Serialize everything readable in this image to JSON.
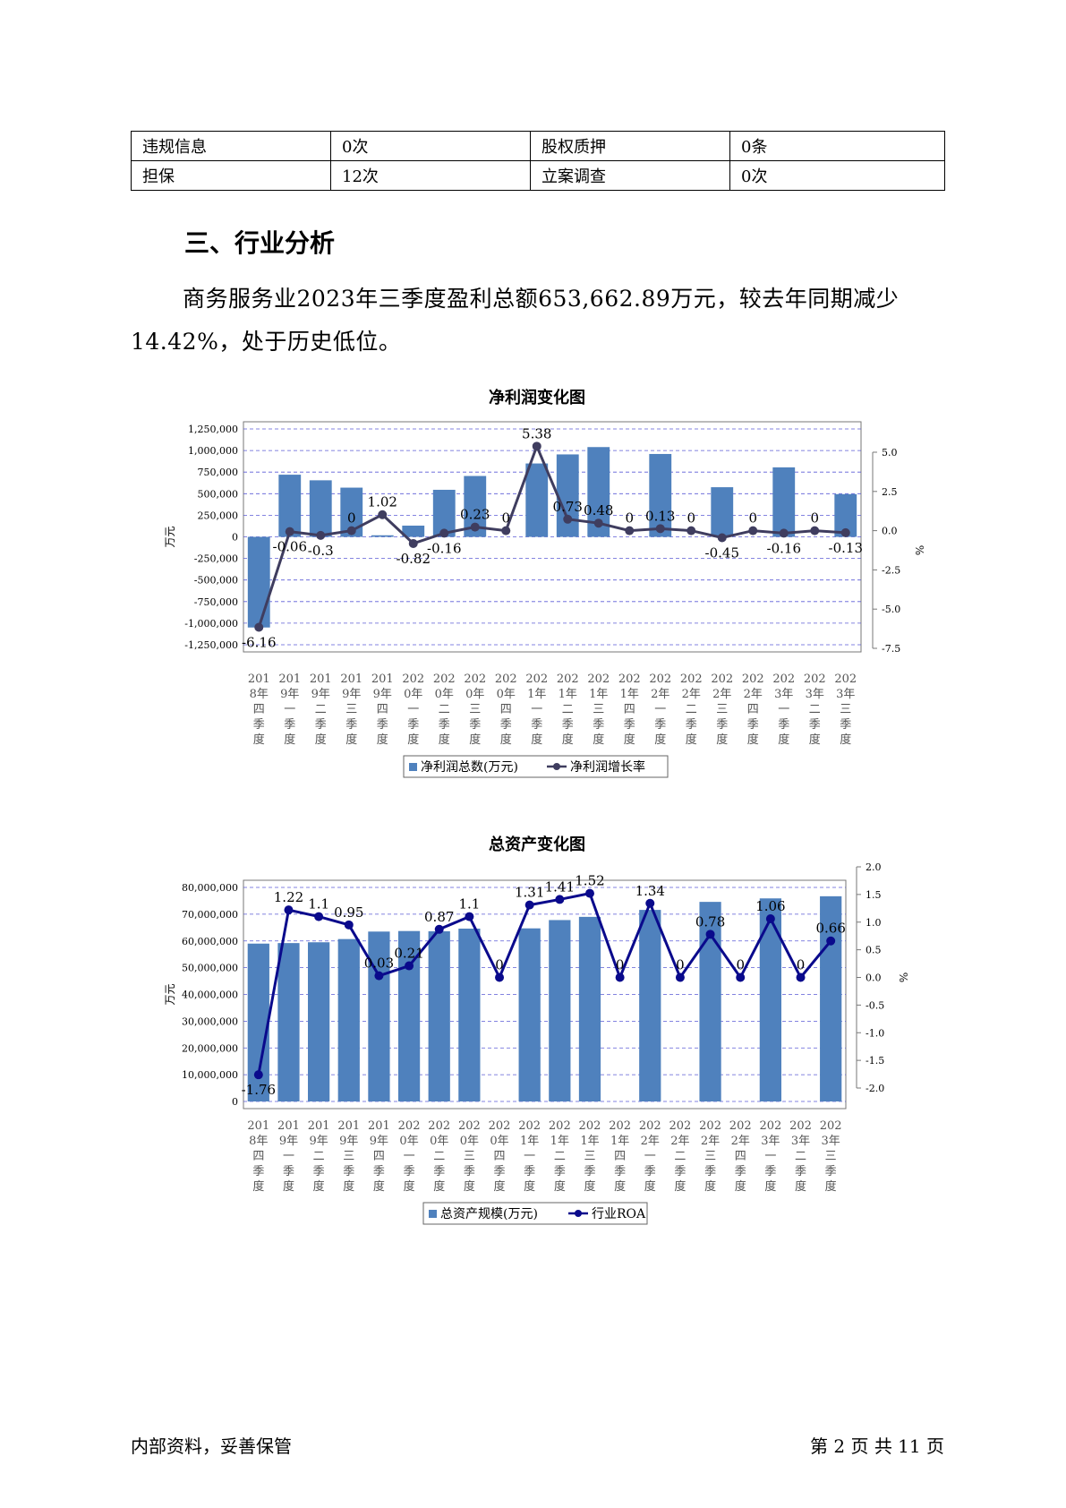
{
  "info_table": [
    [
      "违规信息",
      "0次",
      "股权质押",
      "0条"
    ],
    [
      "担保",
      "12次",
      "立案调查",
      "0次"
    ]
  ],
  "section_title": "三、行业分析",
  "paragraph": "商务服务业2023年三季度盈利总额653,662.89万元，较去年同期减少14.42%，处于历史低位。",
  "colors": {
    "bar": "#4f81bd",
    "line1": "#3f3d5f",
    "line2": "#0a0a8c",
    "grid": "#5b5bd6"
  },
  "chart_data": [
    {
      "type": "bar",
      "title": "净利润变化图",
      "categories": [
        "2018年四季度",
        "2019年一季度",
        "2019年二季度",
        "2019年三季度",
        "2019年四季度",
        "2020年一季度",
        "2020年二季度",
        "2020年三季度",
        "2020年四季度",
        "2021年一季度",
        "2021年二季度",
        "2021年三季度",
        "2021年四季度",
        "2022年一季度",
        "2022年二季度",
        "2022年三季度",
        "2022年四季度",
        "2023年一季度",
        "2023年二季度",
        "2023年三季度"
      ],
      "ylabel": "万元",
      "y2label": "%",
      "ylim": [
        -1250000,
        1250000
      ],
      "y2lim": [
        -7.5,
        5.0
      ],
      "yticks": [
        "1,250,000",
        "1,000,000",
        "750,000",
        "500,000",
        "250,000",
        "0",
        "-250,000",
        "-500,000",
        "-750,000",
        "-1,000,000",
        "-1,250,000"
      ],
      "y2ticks": [
        "5.0",
        "2.5",
        "0.0",
        "-2.5",
        "-5.0",
        "-7.5"
      ],
      "series": [
        {
          "name": "净利润总数(万元)",
          "kind": "bar",
          "values": [
            -1050000,
            720000,
            655000,
            570000,
            18000,
            130000,
            545000,
            705000,
            0,
            850000,
            955000,
            1040000,
            0,
            960000,
            0,
            575000,
            0,
            805000,
            0,
            495000
          ]
        },
        {
          "name": "净利润增长率",
          "kind": "line",
          "axis": "right",
          "values": [
            -6.16,
            -0.06,
            -0.3,
            0,
            1.02,
            -0.82,
            -0.16,
            0.23,
            0,
            5.38,
            0.73,
            0.48,
            0,
            0.13,
            0,
            -0.45,
            0,
            -0.16,
            0,
            -0.13
          ],
          "labels": [
            "-6.16",
            "-0.06",
            "-0.3",
            "0",
            "1.02",
            "-0.82",
            "-0.16",
            "0.23",
            "0",
            "5.38",
            "0.73",
            "0.48",
            "0",
            "0.13",
            "0",
            "-0.45",
            "0",
            "-0.16",
            "0",
            "-0.13"
          ]
        }
      ],
      "legend": "bottom"
    },
    {
      "type": "bar",
      "title": "总资产变化图",
      "categories": [
        "2018年四季度",
        "2019年一季度",
        "2019年二季度",
        "2019年三季度",
        "2019年四季度",
        "2020年一季度",
        "2020年二季度",
        "2020年三季度",
        "2020年四季度",
        "2021年一季度",
        "2021年二季度",
        "2021年三季度",
        "2021年四季度",
        "2022年一季度",
        "2022年二季度",
        "2022年三季度",
        "2022年四季度",
        "2023年一季度",
        "2023年二季度",
        "2023年三季度"
      ],
      "ylabel": "万元",
      "y2label": "%",
      "ylim": [
        0,
        80000000
      ],
      "y2lim": [
        -2.0,
        2.0
      ],
      "yticks": [
        "80,000,000",
        "70,000,000",
        "60,000,000",
        "50,000,000",
        "40,000,000",
        "30,000,000",
        "20,000,000",
        "10,000,000",
        "0"
      ],
      "y2ticks": [
        "2.0",
        "1.5",
        "1.0",
        "0.5",
        "0.0",
        "-0.5",
        "-1.0",
        "-1.5",
        "-2.0"
      ],
      "series": [
        {
          "name": "总资产规模(万元)",
          "kind": "bar",
          "values": [
            59000000,
            59200000,
            59500000,
            60700000,
            63500000,
            63700000,
            63600000,
            64600000,
            0,
            64700000,
            67800000,
            69000000,
            0,
            71600000,
            0,
            74600000,
            0,
            75900000,
            0,
            76700000
          ]
        },
        {
          "name": "行业ROA",
          "kind": "line",
          "axis": "right",
          "values": [
            -1.76,
            1.22,
            1.1,
            0.95,
            0.03,
            0.21,
            0.87,
            1.1,
            0,
            1.31,
            1.41,
            1.52,
            0,
            1.34,
            0,
            0.78,
            0,
            1.06,
            0,
            0.66
          ],
          "labels": [
            "-1.76",
            "1.22",
            "1.1",
            "0.95",
            "0.03",
            "0.21",
            "0.87",
            "1.1",
            "0",
            "1.31",
            "1.41",
            "1.52",
            "0",
            "1.34",
            "0",
            "0.78",
            "0",
            "1.06",
            "0",
            "0.66"
          ]
        }
      ],
      "legend": "bottom"
    }
  ],
  "footer": {
    "left": "内部资料，妥善保管",
    "right": "第 2 页   共 11 页"
  }
}
